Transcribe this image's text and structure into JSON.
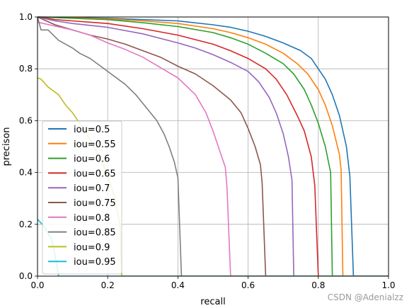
{
  "chart_data": {
    "type": "line",
    "title": "",
    "xlabel": "recall",
    "ylabel": "precison",
    "xlim": [
      0,
      1.0
    ],
    "ylim": [
      0,
      1.0
    ],
    "xticks": [
      "0.0",
      "0.2",
      "0.4",
      "0.6",
      "0.8",
      "1.0"
    ],
    "yticks": [
      "0.0",
      "0.2",
      "0.4",
      "0.6",
      "0.8",
      "1.0"
    ],
    "grid": true,
    "legend_position": "left",
    "series": [
      {
        "name": "iou=0.5",
        "color": "#1f77b4",
        "points": [
          [
            0,
            1.0
          ],
          [
            0.1,
            0.998
          ],
          [
            0.2,
            0.995
          ],
          [
            0.3,
            0.99
          ],
          [
            0.4,
            0.985
          ],
          [
            0.5,
            0.97
          ],
          [
            0.55,
            0.96
          ],
          [
            0.6,
            0.945
          ],
          [
            0.65,
            0.925
          ],
          [
            0.7,
            0.9
          ],
          [
            0.75,
            0.87
          ],
          [
            0.78,
            0.84
          ],
          [
            0.8,
            0.8
          ],
          [
            0.82,
            0.76
          ],
          [
            0.84,
            0.7
          ],
          [
            0.86,
            0.62
          ],
          [
            0.88,
            0.5
          ],
          [
            0.89,
            0.385
          ],
          [
            0.9,
            0.0
          ]
        ]
      },
      {
        "name": "iou=0.55",
        "color": "#ff7f0e",
        "points": [
          [
            0,
            1.0
          ],
          [
            0.1,
            0.997
          ],
          [
            0.2,
            0.993
          ],
          [
            0.3,
            0.985
          ],
          [
            0.4,
            0.975
          ],
          [
            0.5,
            0.955
          ],
          [
            0.55,
            0.94
          ],
          [
            0.6,
            0.92
          ],
          [
            0.65,
            0.895
          ],
          [
            0.7,
            0.86
          ],
          [
            0.74,
            0.82
          ],
          [
            0.77,
            0.78
          ],
          [
            0.8,
            0.72
          ],
          [
            0.82,
            0.66
          ],
          [
            0.84,
            0.58
          ],
          [
            0.86,
            0.47
          ],
          [
            0.865,
            0.41
          ],
          [
            0.87,
            0.0
          ]
        ]
      },
      {
        "name": "iou=0.6",
        "color": "#2ca02c",
        "points": [
          [
            0,
            1.0
          ],
          [
            0.1,
            0.995
          ],
          [
            0.2,
            0.99
          ],
          [
            0.3,
            0.978
          ],
          [
            0.4,
            0.963
          ],
          [
            0.5,
            0.94
          ],
          [
            0.55,
            0.92
          ],
          [
            0.6,
            0.895
          ],
          [
            0.65,
            0.86
          ],
          [
            0.7,
            0.82
          ],
          [
            0.73,
            0.78
          ],
          [
            0.76,
            0.72
          ],
          [
            0.78,
            0.66
          ],
          [
            0.8,
            0.59
          ],
          [
            0.82,
            0.5
          ],
          [
            0.835,
            0.4
          ],
          [
            0.84,
            0.0
          ]
        ]
      },
      {
        "name": "iou=0.65",
        "color": "#d62728",
        "points": [
          [
            0,
            1.0
          ],
          [
            0.05,
            0.99
          ],
          [
            0.1,
            0.985
          ],
          [
            0.2,
            0.975
          ],
          [
            0.3,
            0.955
          ],
          [
            0.4,
            0.93
          ],
          [
            0.5,
            0.895
          ],
          [
            0.55,
            0.87
          ],
          [
            0.6,
            0.84
          ],
          [
            0.65,
            0.8
          ],
          [
            0.68,
            0.76
          ],
          [
            0.71,
            0.7
          ],
          [
            0.74,
            0.62
          ],
          [
            0.76,
            0.56
          ],
          [
            0.78,
            0.46
          ],
          [
            0.79,
            0.35
          ],
          [
            0.8,
            0.0
          ]
        ]
      },
      {
        "name": "iou=0.7",
        "color": "#9467bd",
        "points": [
          [
            0,
            1.0
          ],
          [
            0.05,
            0.985
          ],
          [
            0.1,
            0.975
          ],
          [
            0.2,
            0.96
          ],
          [
            0.3,
            0.935
          ],
          [
            0.4,
            0.9
          ],
          [
            0.45,
            0.88
          ],
          [
            0.5,
            0.855
          ],
          [
            0.55,
            0.825
          ],
          [
            0.6,
            0.79
          ],
          [
            0.63,
            0.75
          ],
          [
            0.66,
            0.69
          ],
          [
            0.68,
            0.63
          ],
          [
            0.7,
            0.55
          ],
          [
            0.715,
            0.46
          ],
          [
            0.725,
            0.37
          ],
          [
            0.73,
            0.0
          ]
        ]
      },
      {
        "name": "iou=0.75",
        "color": "#8c564b",
        "points": [
          [
            0,
            1.0
          ],
          [
            0.05,
            0.97
          ],
          [
            0.1,
            0.95
          ],
          [
            0.15,
            0.93
          ],
          [
            0.2,
            0.915
          ],
          [
            0.25,
            0.895
          ],
          [
            0.3,
            0.87
          ],
          [
            0.35,
            0.845
          ],
          [
            0.4,
            0.81
          ],
          [
            0.45,
            0.78
          ],
          [
            0.5,
            0.735
          ],
          [
            0.55,
            0.68
          ],
          [
            0.58,
            0.63
          ],
          [
            0.6,
            0.57
          ],
          [
            0.62,
            0.5
          ],
          [
            0.635,
            0.43
          ],
          [
            0.64,
            0.36
          ],
          [
            0.65,
            0.0
          ]
        ]
      },
      {
        "name": "iou=0.8",
        "color": "#e377c2",
        "points": [
          [
            0,
            0.98
          ],
          [
            0.05,
            0.965
          ],
          [
            0.1,
            0.95
          ],
          [
            0.15,
            0.93
          ],
          [
            0.2,
            0.9
          ],
          [
            0.25,
            0.875
          ],
          [
            0.3,
            0.845
          ],
          [
            0.35,
            0.805
          ],
          [
            0.4,
            0.765
          ],
          [
            0.45,
            0.7
          ],
          [
            0.48,
            0.63
          ],
          [
            0.5,
            0.56
          ],
          [
            0.52,
            0.48
          ],
          [
            0.535,
            0.42
          ],
          [
            0.54,
            0.34
          ],
          [
            0.55,
            0.0
          ]
        ]
      },
      {
        "name": "iou=0.85",
        "color": "#7f7f7f",
        "points": [
          [
            0,
            1.0
          ],
          [
            0.01,
            0.95
          ],
          [
            0.03,
            0.95
          ],
          [
            0.06,
            0.91
          ],
          [
            0.1,
            0.88
          ],
          [
            0.12,
            0.86
          ],
          [
            0.15,
            0.84
          ],
          [
            0.18,
            0.81
          ],
          [
            0.2,
            0.79
          ],
          [
            0.25,
            0.74
          ],
          [
            0.28,
            0.7
          ],
          [
            0.31,
            0.65
          ],
          [
            0.34,
            0.6
          ],
          [
            0.36,
            0.55
          ],
          [
            0.375,
            0.5
          ],
          [
            0.39,
            0.44
          ],
          [
            0.4,
            0.38
          ],
          [
            0.41,
            0.0
          ]
        ]
      },
      {
        "name": "iou=0.9",
        "color": "#bcbd22",
        "points": [
          [
            0,
            0.765
          ],
          [
            0.01,
            0.76
          ],
          [
            0.03,
            0.73
          ],
          [
            0.06,
            0.7
          ],
          [
            0.08,
            0.66
          ],
          [
            0.1,
            0.63
          ],
          [
            0.12,
            0.59
          ],
          [
            0.14,
            0.55
          ],
          [
            0.16,
            0.5
          ],
          [
            0.18,
            0.45
          ],
          [
            0.2,
            0.39
          ],
          [
            0.22,
            0.3
          ],
          [
            0.235,
            0.2
          ],
          [
            0.24,
            0.0
          ]
        ]
      },
      {
        "name": "iou=0.95",
        "color": "#17becf",
        "points": [
          [
            0,
            0.22
          ],
          [
            0.02,
            0.19
          ],
          [
            0.04,
            0.14
          ],
          [
            0.05,
            0.08
          ],
          [
            0.06,
            0.0
          ]
        ]
      }
    ]
  },
  "watermark": "CSDN @Adenialzz"
}
